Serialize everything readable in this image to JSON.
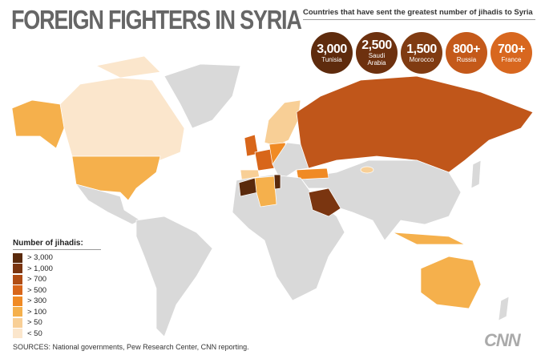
{
  "header": {
    "title": "FOREIGN FIGHTERS IN SYRIA",
    "subtitle": "Countries that have sent the greatest number of jihadis to Syria"
  },
  "top_countries": [
    {
      "count": "3,000",
      "country": "Tunisia",
      "color": "#5e2b0d"
    },
    {
      "count": "2,500",
      "country": "Saudi Arabia",
      "color": "#6d310f"
    },
    {
      "count": "1,500",
      "country": "Morocco",
      "color": "#803b12"
    },
    {
      "count": "800+",
      "country": "Russia",
      "color": "#c4591a"
    },
    {
      "count": "700+",
      "country": "France",
      "color": "#d8671f"
    }
  ],
  "legend": {
    "title": "Number of jihadis:",
    "items": [
      {
        "label": "> 3,000",
        "color": "#5a2a0c"
      },
      {
        "label": "> 1,000",
        "color": "#7a3510"
      },
      {
        "label": "> 700",
        "color": "#b04d14"
      },
      {
        "label": "> 500",
        "color": "#d8661a"
      },
      {
        "label": "> 300",
        "color": "#f08a24"
      },
      {
        "label": "> 100",
        "color": "#f5b04c"
      },
      {
        "label": "> 50",
        "color": "#f8cf96"
      },
      {
        "label": "< 50",
        "color": "#fbe6cc"
      }
    ]
  },
  "footer": {
    "sources": "SOURCES:  National governments, Pew Research Center, CNN reporting.",
    "logo": "CNN"
  }
}
